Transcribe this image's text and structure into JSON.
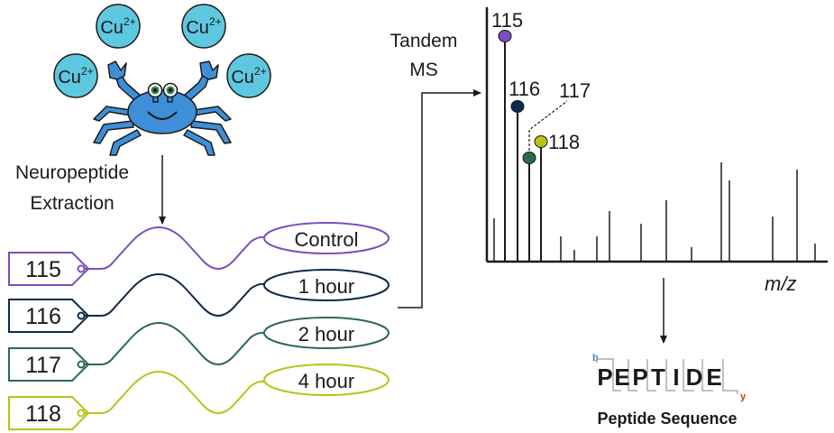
{
  "ions": [
    {
      "symbol": "Cu",
      "charge": "2+"
    },
    {
      "symbol": "Cu",
      "charge": "2+"
    },
    {
      "symbol": "Cu",
      "charge": "2+"
    },
    {
      "symbol": "Cu",
      "charge": "2+"
    }
  ],
  "extraction_label": [
    "Neuropeptide",
    "Extraction"
  ],
  "tags": [
    {
      "tag": "115",
      "condition": "Control",
      "color": "#7a4fbf"
    },
    {
      "tag": "116",
      "condition": "1 hour",
      "color": "#0c2a4a"
    },
    {
      "tag": "117",
      "condition": "2 hour",
      "color": "#2a6a4e"
    },
    {
      "tag": "118",
      "condition": "4 hour",
      "color": "#b8c417"
    }
  ],
  "ms_label": [
    "Tandem",
    "MS"
  ],
  "reporter_labels": [
    "115",
    "116",
    "117",
    "118"
  ],
  "axis_label": "m/z",
  "peptide": {
    "letters": [
      "P",
      "E",
      "P",
      "T",
      "I",
      "D",
      "E"
    ],
    "b_ion": "b",
    "y_ion": "y",
    "caption": "Peptide Sequence",
    "b_color": "#4a7fc0",
    "y_color": "#d0332a"
  },
  "crab_color": "#3f8fd8",
  "ion_color": "#5ec8e0"
}
